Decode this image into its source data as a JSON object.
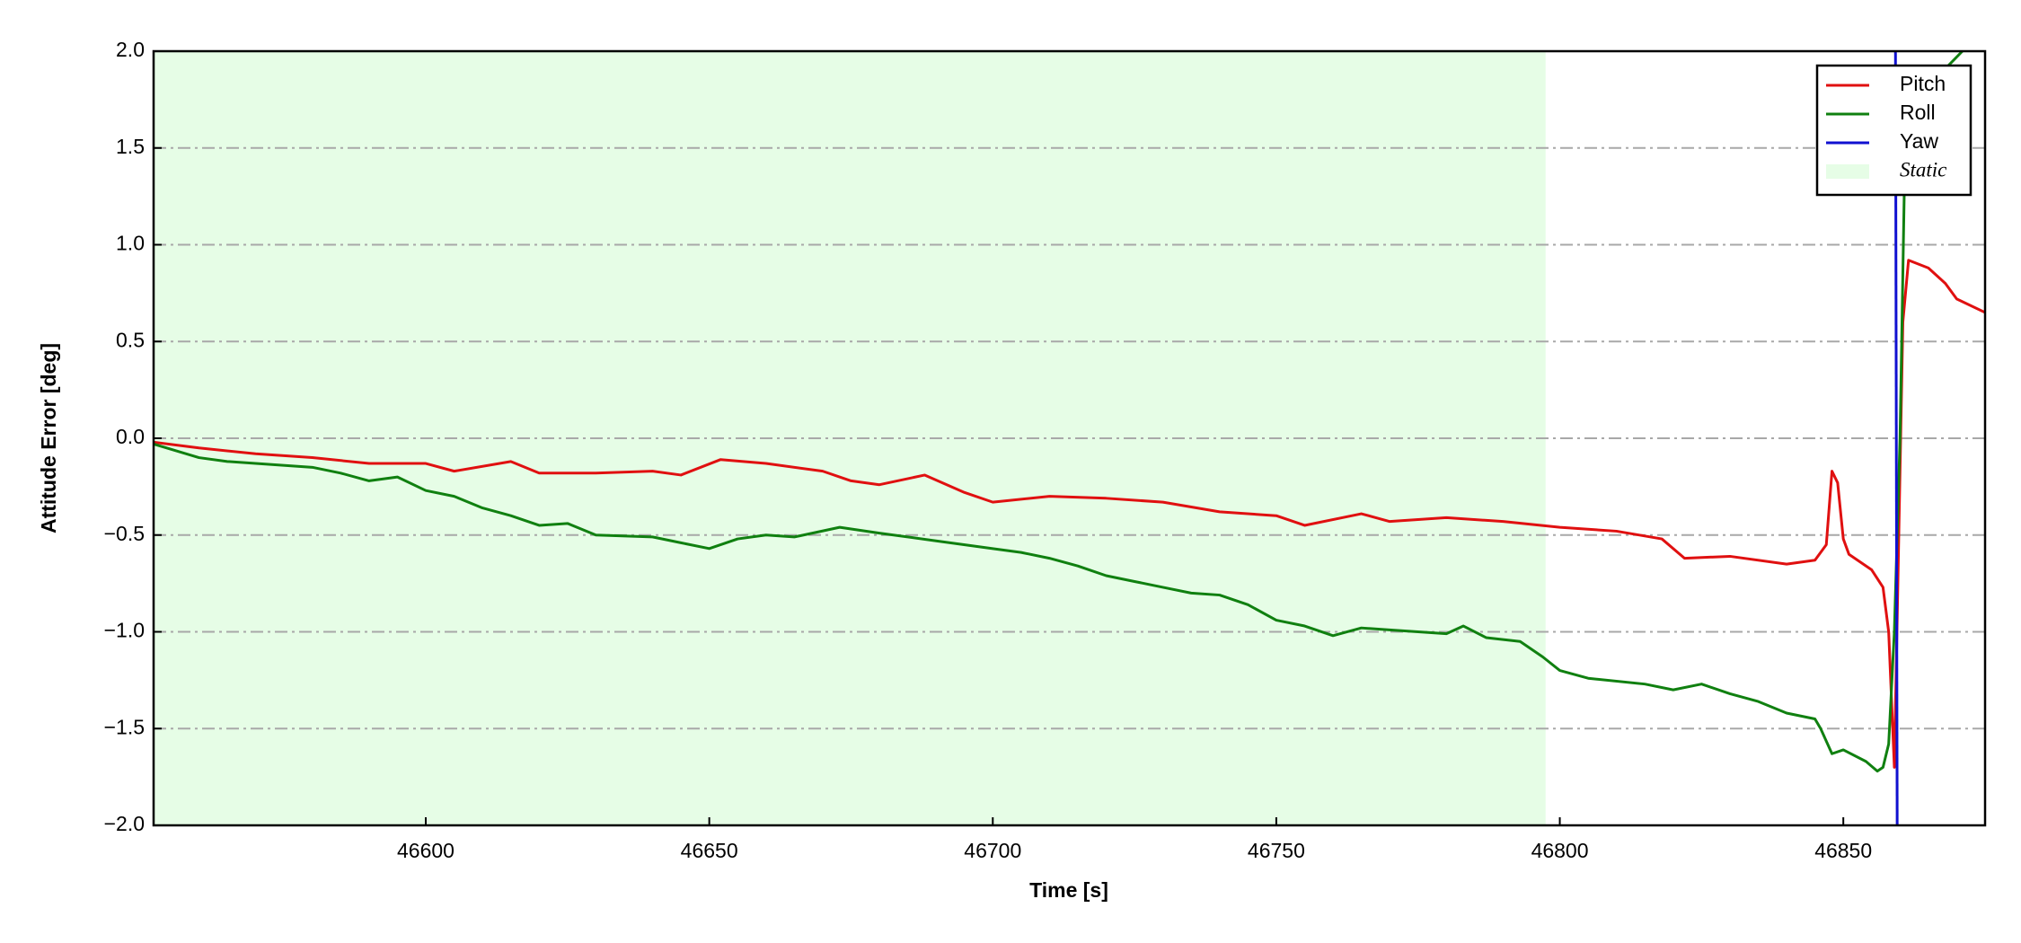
{
  "chart_data": {
    "type": "line",
    "xlabel": "Time [s]",
    "ylabel": "Attitude Error [deg]",
    "xlim": [
      46552,
      46875
    ],
    "ylim": [
      -2.0,
      2.0
    ],
    "xticks": [
      46600,
      46650,
      46700,
      46750,
      46800,
      46850
    ],
    "yticks": [
      {
        "value": -2.0,
        "label": "−2.0"
      },
      {
        "value": -1.5,
        "label": "−1.5"
      },
      {
        "value": -1.0,
        "label": "−1.0"
      },
      {
        "value": -0.5,
        "label": "−0.5"
      },
      {
        "value": 0.0,
        "label": "0.0"
      },
      0.5,
      {
        "value": 1.0,
        "label": "1.0"
      },
      1.5,
      {
        "value": 2.0,
        "label": "2.0"
      }
    ],
    "grid": "y",
    "legend": "upper right",
    "spans": [
      {
        "name": "Static",
        "color": "#e6fde6",
        "xmin": 46552,
        "xmax": 46797.5
      }
    ],
    "series": [
      {
        "name": "Pitch",
        "color": "#e01010",
        "x": [
          46552,
          46560,
          46570,
          46580,
          46590,
          46600,
          46605,
          46615,
          46620,
          46630,
          46640,
          46645,
          46652,
          46660,
          46670,
          46675,
          46680,
          46688,
          46695,
          46700,
          46710,
          46720,
          46730,
          46740,
          46750,
          46755,
          46765,
          46770,
          46780,
          46790,
          46800,
          46810,
          46818,
          46822,
          46830,
          46840,
          46845,
          46847,
          46848,
          46849,
          46850,
          46851,
          46855,
          46857,
          46858,
          46859,
          46860.5,
          46861.5,
          46865,
          46868,
          46870,
          46875
        ],
        "values": [
          -0.02,
          -0.05,
          -0.08,
          -0.1,
          -0.13,
          -0.13,
          -0.17,
          -0.12,
          -0.18,
          -0.18,
          -0.17,
          -0.19,
          -0.11,
          -0.13,
          -0.17,
          -0.22,
          -0.24,
          -0.19,
          -0.28,
          -0.33,
          -0.3,
          -0.31,
          -0.33,
          -0.38,
          -0.4,
          -0.45,
          -0.39,
          -0.43,
          -0.41,
          -0.43,
          -0.46,
          -0.48,
          -0.52,
          -0.62,
          -0.61,
          -0.65,
          -0.63,
          -0.55,
          -0.17,
          -0.23,
          -0.52,
          -0.6,
          -0.68,
          -0.77,
          -1.0,
          -1.7,
          0.6,
          0.92,
          0.88,
          0.8,
          0.72,
          0.65
        ]
      },
      {
        "name": "Roll",
        "color": "#108010",
        "x": [
          46552,
          46560,
          46565,
          46570,
          46580,
          46585,
          46590,
          46595,
          46600,
          46605,
          46610,
          46615,
          46620,
          46625,
          46630,
          46640,
          46645,
          46650,
          46655,
          46660,
          46665,
          46673,
          46680,
          46690,
          46700,
          46705,
          46710,
          46715,
          46720,
          46725,
          46730,
          46735,
          46740,
          46745,
          46750,
          46755,
          46760,
          46765,
          46770,
          46780,
          46783,
          46787,
          46793,
          46797,
          46800,
          46805,
          46815,
          46820,
          46825,
          46830,
          46835,
          46840,
          46845,
          46846,
          46848,
          46850,
          46854,
          46856,
          46857,
          46858,
          46859,
          46860,
          46861,
          46871
        ],
        "values": [
          -0.03,
          -0.1,
          -0.12,
          -0.13,
          -0.15,
          -0.18,
          -0.22,
          -0.2,
          -0.27,
          -0.3,
          -0.36,
          -0.4,
          -0.45,
          -0.44,
          -0.5,
          -0.51,
          -0.54,
          -0.57,
          -0.52,
          -0.5,
          -0.51,
          -0.46,
          -0.49,
          -0.53,
          -0.57,
          -0.59,
          -0.62,
          -0.66,
          -0.71,
          -0.74,
          -0.77,
          -0.8,
          -0.81,
          -0.86,
          -0.94,
          -0.97,
          -1.02,
          -0.98,
          -0.99,
          -1.01,
          -0.97,
          -1.03,
          -1.05,
          -1.13,
          -1.2,
          -1.24,
          -1.27,
          -1.3,
          -1.27,
          -1.32,
          -1.36,
          -1.42,
          -1.45,
          -1.5,
          -1.63,
          -1.61,
          -1.67,
          -1.72,
          -1.7,
          -1.58,
          -1.0,
          0.0,
          1.7,
          2.0
        ]
      },
      {
        "name": "Yaw",
        "color": "#1010d0",
        "x": [
          46859.2,
          46859.5
        ],
        "values": [
          2.0,
          -2.0
        ]
      }
    ]
  }
}
